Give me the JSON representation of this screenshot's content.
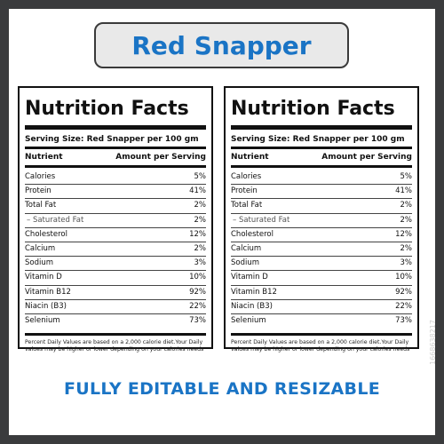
{
  "title": "Red Snapper",
  "footer_text": "FULLY EDITABLE AND RESIZABLE",
  "stock_id": "1668638217",
  "colors": {
    "accent": "#1a74c5",
    "frame": "#3a3b3d",
    "pill_bg": "#e9e9e9"
  },
  "label": {
    "heading": "Nutrition Facts",
    "serving": "Serving Size: Red Snapper per 100 gm",
    "col_nutrient": "Nutrient",
    "col_amount": "Amount per Serving",
    "rows": [
      {
        "name": "Calories",
        "value": "5%"
      },
      {
        "name": "Protein",
        "value": "41%"
      },
      {
        "name": "Total Fat",
        "value": "2%"
      },
      {
        "name": "– Saturated Fat",
        "value": "2%"
      },
      {
        "name": "Cholesterol",
        "value": "12%"
      },
      {
        "name": "Calcium",
        "value": "2%"
      },
      {
        "name": "Sodium",
        "value": "3%"
      },
      {
        "name": "Vitamin D",
        "value": "10%"
      },
      {
        "name": "Vitamin B12",
        "value": "92%"
      },
      {
        "name": "Niacin (B3)",
        "value": "22%"
      },
      {
        "name": "Selenium",
        "value": "73%"
      }
    ],
    "footnote": "Percent Daily Values are based on a 2,000 calorie diet.Your Daily values may be higher or lower depending on your calories needs"
  }
}
